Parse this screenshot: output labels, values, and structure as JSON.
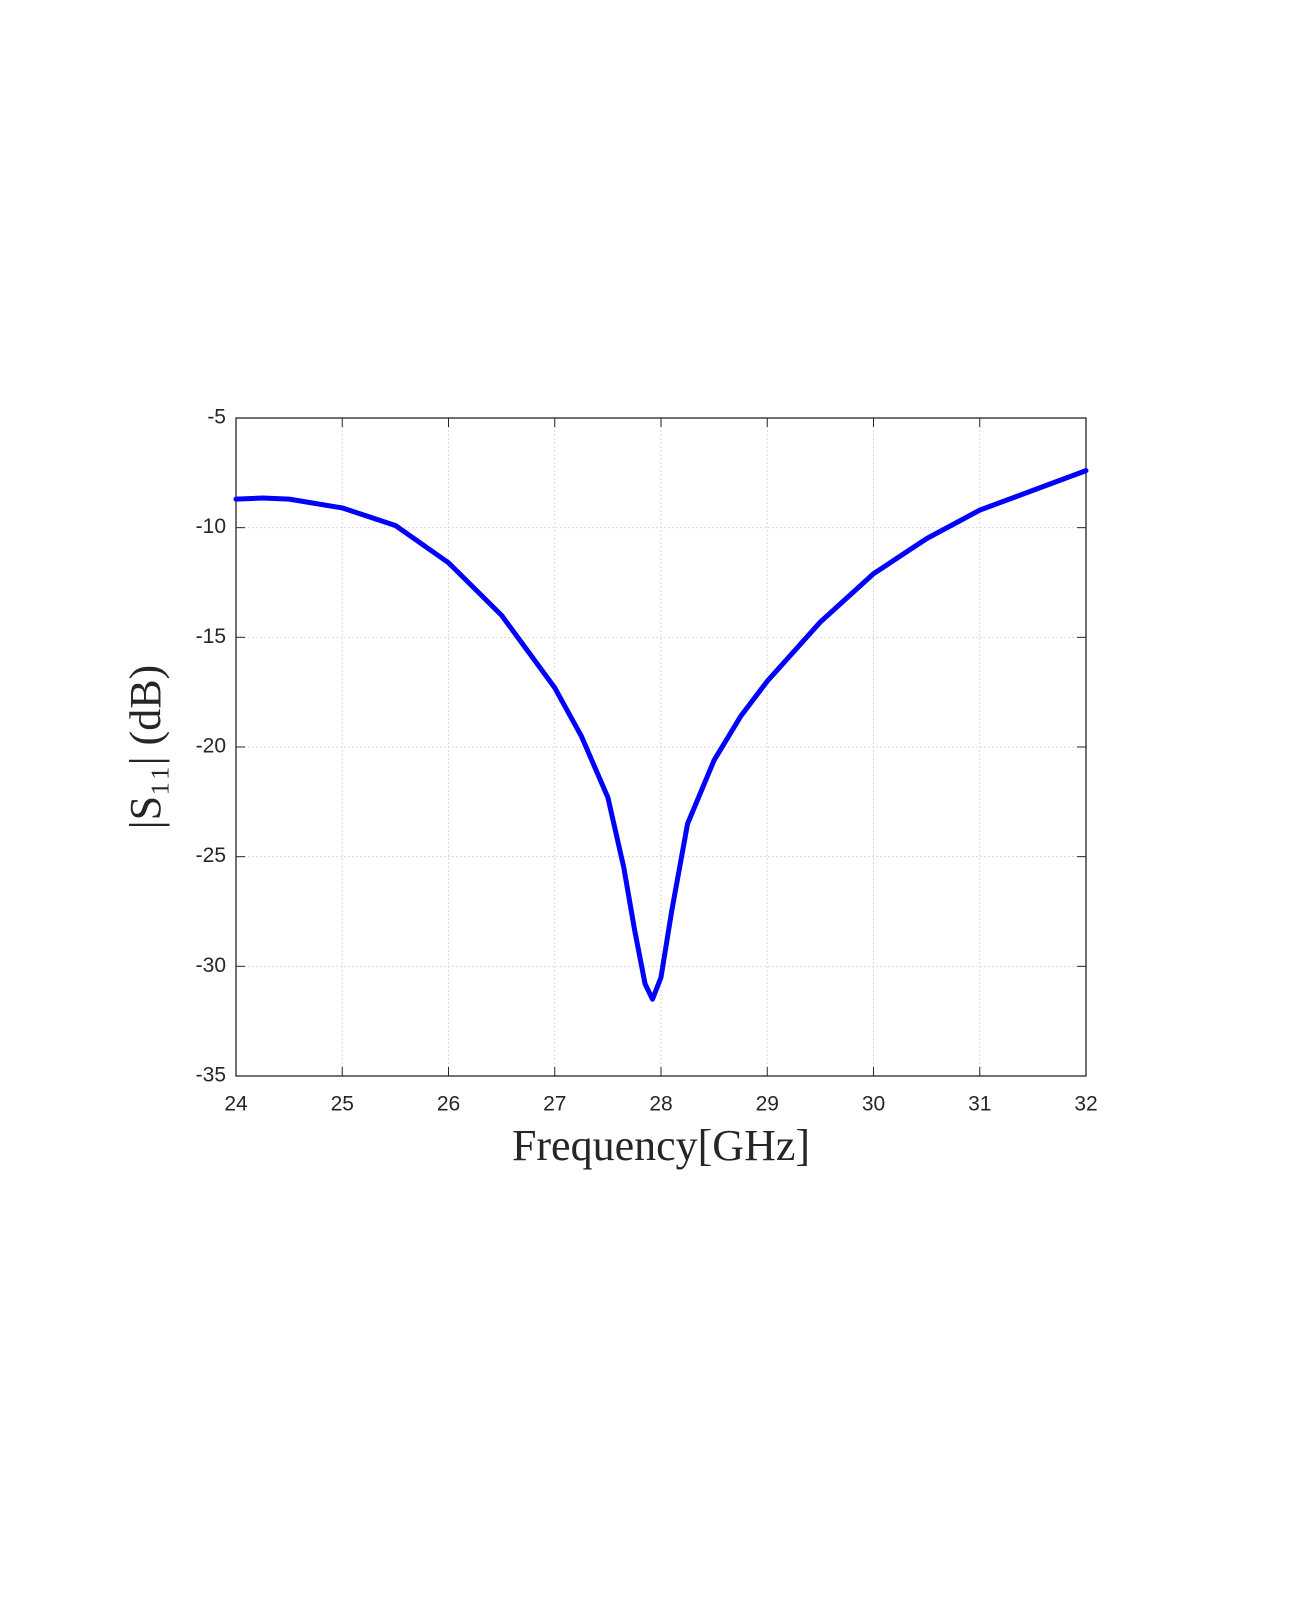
{
  "chart_data": {
    "type": "line",
    "x_label": "Frequency[GHz]",
    "y_label": "|S₁₁| (dB)",
    "x": [
      24,
      24.25,
      24.5,
      25,
      25.5,
      26,
      26.5,
      27,
      27.25,
      27.5,
      27.65,
      27.75,
      27.85,
      27.92,
      28.0,
      28.1,
      28.25,
      28.5,
      28.75,
      29,
      29.5,
      30,
      30.5,
      31,
      31.5,
      32
    ],
    "series": [
      {
        "name": "S11",
        "color": "#0000ff",
        "values": [
          -8.7,
          -8.65,
          -8.7,
          -9.1,
          -9.9,
          -11.6,
          -14.0,
          -17.3,
          -19.5,
          -22.3,
          -25.5,
          -28.3,
          -30.8,
          -31.5,
          -30.5,
          -27.5,
          -23.5,
          -20.6,
          -18.6,
          -17.0,
          -14.3,
          -12.1,
          -10.5,
          -9.2,
          -8.3,
          -7.4
        ]
      }
    ],
    "xlim": [
      24,
      32
    ],
    "xticks": [
      24,
      25,
      26,
      27,
      28,
      29,
      30,
      31,
      32
    ],
    "ylim": [
      -35,
      -5
    ],
    "yticks": [
      -35,
      -30,
      -25,
      -20,
      -15,
      -10,
      -5
    ],
    "grid": true
  }
}
